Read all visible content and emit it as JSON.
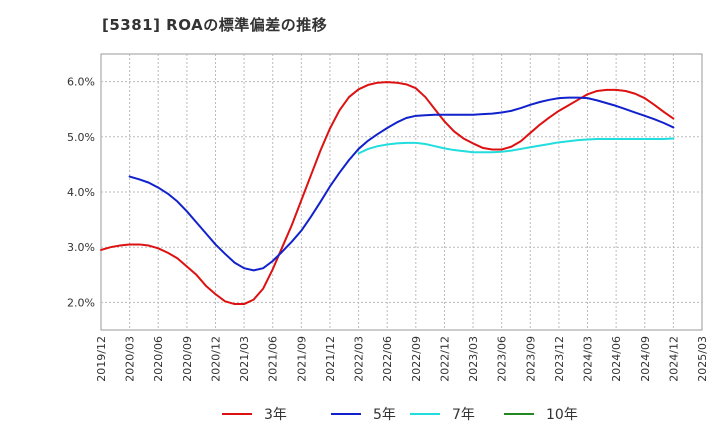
{
  "title": "[5381]  ROAの標準偏差の推移",
  "chart_data": {
    "type": "line",
    "title": "[5381]  ROAの標準偏差の推移",
    "xlabel": "",
    "ylabel": "",
    "x_ticks": [
      "2019/12",
      "2020/03",
      "2020/06",
      "2020/09",
      "2020/12",
      "2021/03",
      "2021/06",
      "2021/09",
      "2021/12",
      "2022/03",
      "2022/06",
      "2022/09",
      "2022/12",
      "2023/03",
      "2023/06",
      "2023/09",
      "2023/12",
      "2024/03",
      "2024/06",
      "2024/09",
      "2024/12",
      "2025/03"
    ],
    "y_ticks": [
      "2.0%",
      "3.0%",
      "4.0%",
      "5.0%",
      "6.0%"
    ],
    "y_tick_values": [
      2.0,
      3.0,
      4.0,
      5.0,
      6.0
    ],
    "ylim": [
      1.5,
      6.5
    ],
    "grid": true,
    "legend_position": "bottom",
    "series": [
      {
        "name": "3年",
        "color": "#dd1111",
        "points": [
          [
            "2019/12",
            2.95
          ],
          [
            "2020/01",
            3.0
          ],
          [
            "2020/02",
            3.03
          ],
          [
            "2020/03",
            3.05
          ],
          [
            "2020/04",
            3.05
          ],
          [
            "2020/05",
            3.03
          ],
          [
            "2020/06",
            2.98
          ],
          [
            "2020/07",
            2.9
          ],
          [
            "2020/08",
            2.8
          ],
          [
            "2020/09",
            2.65
          ],
          [
            "2020/10",
            2.5
          ],
          [
            "2020/11",
            2.3
          ],
          [
            "2020/12",
            2.15
          ],
          [
            "2021/01",
            2.02
          ],
          [
            "2021/02",
            1.97
          ],
          [
            "2021/03",
            1.97
          ],
          [
            "2021/04",
            2.05
          ],
          [
            "2021/05",
            2.25
          ],
          [
            "2021/06",
            2.6
          ],
          [
            "2021/07",
            3.0
          ],
          [
            "2021/08",
            3.4
          ],
          [
            "2021/09",
            3.85
          ],
          [
            "2021/10",
            4.3
          ],
          [
            "2021/11",
            4.75
          ],
          [
            "2021/12",
            5.15
          ],
          [
            "2022/01",
            5.48
          ],
          [
            "2022/02",
            5.72
          ],
          [
            "2022/03",
            5.86
          ],
          [
            "2022/04",
            5.94
          ],
          [
            "2022/05",
            5.98
          ],
          [
            "2022/06",
            5.99
          ],
          [
            "2022/07",
            5.98
          ],
          [
            "2022/08",
            5.95
          ],
          [
            "2022/09",
            5.88
          ],
          [
            "2022/10",
            5.72
          ],
          [
            "2022/11",
            5.5
          ],
          [
            "2022/12",
            5.28
          ],
          [
            "2023/01",
            5.1
          ],
          [
            "2023/02",
            4.97
          ],
          [
            "2023/03",
            4.88
          ],
          [
            "2023/04",
            4.8
          ],
          [
            "2023/05",
            4.77
          ],
          [
            "2023/06",
            4.77
          ],
          [
            "2023/07",
            4.82
          ],
          [
            "2023/08",
            4.92
          ],
          [
            "2023/09",
            5.07
          ],
          [
            "2023/10",
            5.22
          ],
          [
            "2023/11",
            5.35
          ],
          [
            "2023/12",
            5.47
          ],
          [
            "2024/01",
            5.57
          ],
          [
            "2024/02",
            5.67
          ],
          [
            "2024/03",
            5.77
          ],
          [
            "2024/04",
            5.83
          ],
          [
            "2024/05",
            5.85
          ],
          [
            "2024/06",
            5.85
          ],
          [
            "2024/07",
            5.83
          ],
          [
            "2024/08",
            5.78
          ],
          [
            "2024/09",
            5.7
          ],
          [
            "2024/10",
            5.58
          ],
          [
            "2024/11",
            5.45
          ],
          [
            "2024/12",
            5.33
          ]
        ]
      },
      {
        "name": "5年",
        "color": "#1122cc",
        "points": [
          [
            "2020/03",
            4.28
          ],
          [
            "2020/04",
            4.23
          ],
          [
            "2020/05",
            4.17
          ],
          [
            "2020/06",
            4.08
          ],
          [
            "2020/07",
            3.97
          ],
          [
            "2020/08",
            3.83
          ],
          [
            "2020/09",
            3.65
          ],
          [
            "2020/10",
            3.45
          ],
          [
            "2020/11",
            3.25
          ],
          [
            "2020/12",
            3.05
          ],
          [
            "2021/01",
            2.88
          ],
          [
            "2021/02",
            2.72
          ],
          [
            "2021/03",
            2.62
          ],
          [
            "2021/04",
            2.58
          ],
          [
            "2021/05",
            2.62
          ],
          [
            "2021/06",
            2.75
          ],
          [
            "2021/07",
            2.92
          ],
          [
            "2021/08",
            3.1
          ],
          [
            "2021/09",
            3.3
          ],
          [
            "2021/10",
            3.55
          ],
          [
            "2021/11",
            3.82
          ],
          [
            "2021/12",
            4.1
          ],
          [
            "2022/01",
            4.35
          ],
          [
            "2022/02",
            4.58
          ],
          [
            "2022/03",
            4.78
          ],
          [
            "2022/04",
            4.93
          ],
          [
            "2022/05",
            5.05
          ],
          [
            "2022/06",
            5.16
          ],
          [
            "2022/07",
            5.26
          ],
          [
            "2022/08",
            5.34
          ],
          [
            "2022/09",
            5.38
          ],
          [
            "2022/10",
            5.39
          ],
          [
            "2022/11",
            5.4
          ],
          [
            "2022/12",
            5.4
          ],
          [
            "2023/01",
            5.4
          ],
          [
            "2023/02",
            5.4
          ],
          [
            "2023/03",
            5.4
          ],
          [
            "2023/04",
            5.41
          ],
          [
            "2023/05",
            5.42
          ],
          [
            "2023/06",
            5.44
          ],
          [
            "2023/07",
            5.47
          ],
          [
            "2023/08",
            5.52
          ],
          [
            "2023/09",
            5.58
          ],
          [
            "2023/10",
            5.63
          ],
          [
            "2023/11",
            5.67
          ],
          [
            "2023/12",
            5.7
          ],
          [
            "2024/01",
            5.71
          ],
          [
            "2024/02",
            5.71
          ],
          [
            "2024/03",
            5.7
          ],
          [
            "2024/04",
            5.66
          ],
          [
            "2024/05",
            5.61
          ],
          [
            "2024/06",
            5.56
          ],
          [
            "2024/07",
            5.5
          ],
          [
            "2024/08",
            5.44
          ],
          [
            "2024/09",
            5.38
          ],
          [
            "2024/10",
            5.32
          ],
          [
            "2024/11",
            5.25
          ],
          [
            "2024/12",
            5.17
          ]
        ]
      },
      {
        "name": "7年",
        "color": "#22dddd",
        "points": [
          [
            "2022/03",
            4.7
          ],
          [
            "2022/04",
            4.78
          ],
          [
            "2022/05",
            4.83
          ],
          [
            "2022/06",
            4.86
          ],
          [
            "2022/07",
            4.88
          ],
          [
            "2022/08",
            4.89
          ],
          [
            "2022/09",
            4.89
          ],
          [
            "2022/10",
            4.87
          ],
          [
            "2022/11",
            4.83
          ],
          [
            "2022/12",
            4.79
          ],
          [
            "2023/01",
            4.76
          ],
          [
            "2023/02",
            4.74
          ],
          [
            "2023/03",
            4.72
          ],
          [
            "2023/04",
            4.72
          ],
          [
            "2023/05",
            4.72
          ],
          [
            "2023/06",
            4.73
          ],
          [
            "2023/07",
            4.75
          ],
          [
            "2023/08",
            4.78
          ],
          [
            "2023/09",
            4.81
          ],
          [
            "2023/10",
            4.84
          ],
          [
            "2023/11",
            4.87
          ],
          [
            "2023/12",
            4.9
          ],
          [
            "2024/01",
            4.92
          ],
          [
            "2024/02",
            4.94
          ],
          [
            "2024/03",
            4.95
          ],
          [
            "2024/04",
            4.96
          ],
          [
            "2024/05",
            4.96
          ],
          [
            "2024/06",
            4.96
          ],
          [
            "2024/07",
            4.96
          ],
          [
            "2024/08",
            4.96
          ],
          [
            "2024/09",
            4.96
          ],
          [
            "2024/10",
            4.96
          ],
          [
            "2024/11",
            4.96
          ],
          [
            "2024/12",
            4.97
          ]
        ]
      },
      {
        "name": "10年",
        "color": "#228822",
        "points": []
      }
    ]
  }
}
